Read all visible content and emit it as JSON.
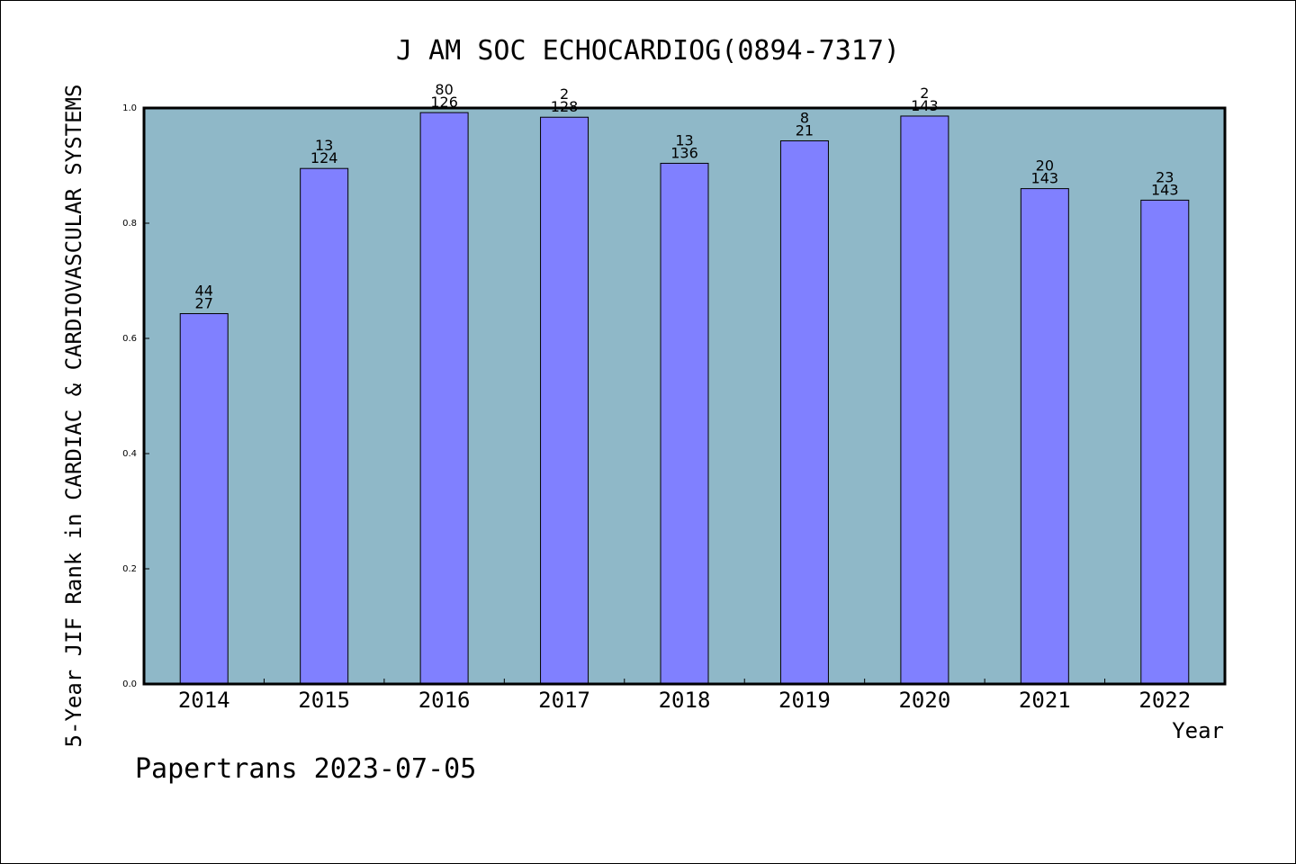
{
  "footer": "Papertrans 2023-07-05",
  "chart_data": {
    "type": "bar",
    "title": "J AM SOC ECHOCARDIOG(0894-7317)",
    "xlabel": "Year",
    "ylabel": "5-Year JIF Rank in CARDIAC & CARDIOVASCULAR SYSTEMS",
    "ylim": [
      0,
      1.0
    ],
    "yticks": [
      "0.0",
      "0.2",
      "0.4",
      "0.6",
      "0.8",
      "1.0"
    ],
    "categories": [
      "2014",
      "2015",
      "2016",
      "2017",
      "2018",
      "2019",
      "2020",
      "2021",
      "2022"
    ],
    "values": [
      0.643,
      0.895,
      0.992,
      0.984,
      0.904,
      0.943,
      0.986,
      0.86,
      0.84
    ],
    "labels_top": [
      "44",
      "13",
      "80",
      "2",
      "13",
      "8",
      "2",
      "20",
      "23"
    ],
    "labels_bottom": [
      "27",
      "124",
      "126",
      "128",
      "136",
      "21",
      "143",
      "143",
      "143"
    ],
    "colors": {
      "plot_background": "#8fb8c8",
      "bar_fill": "#8080ff",
      "bar_stroke": "#000000"
    },
    "grid": false,
    "legend": "none"
  }
}
